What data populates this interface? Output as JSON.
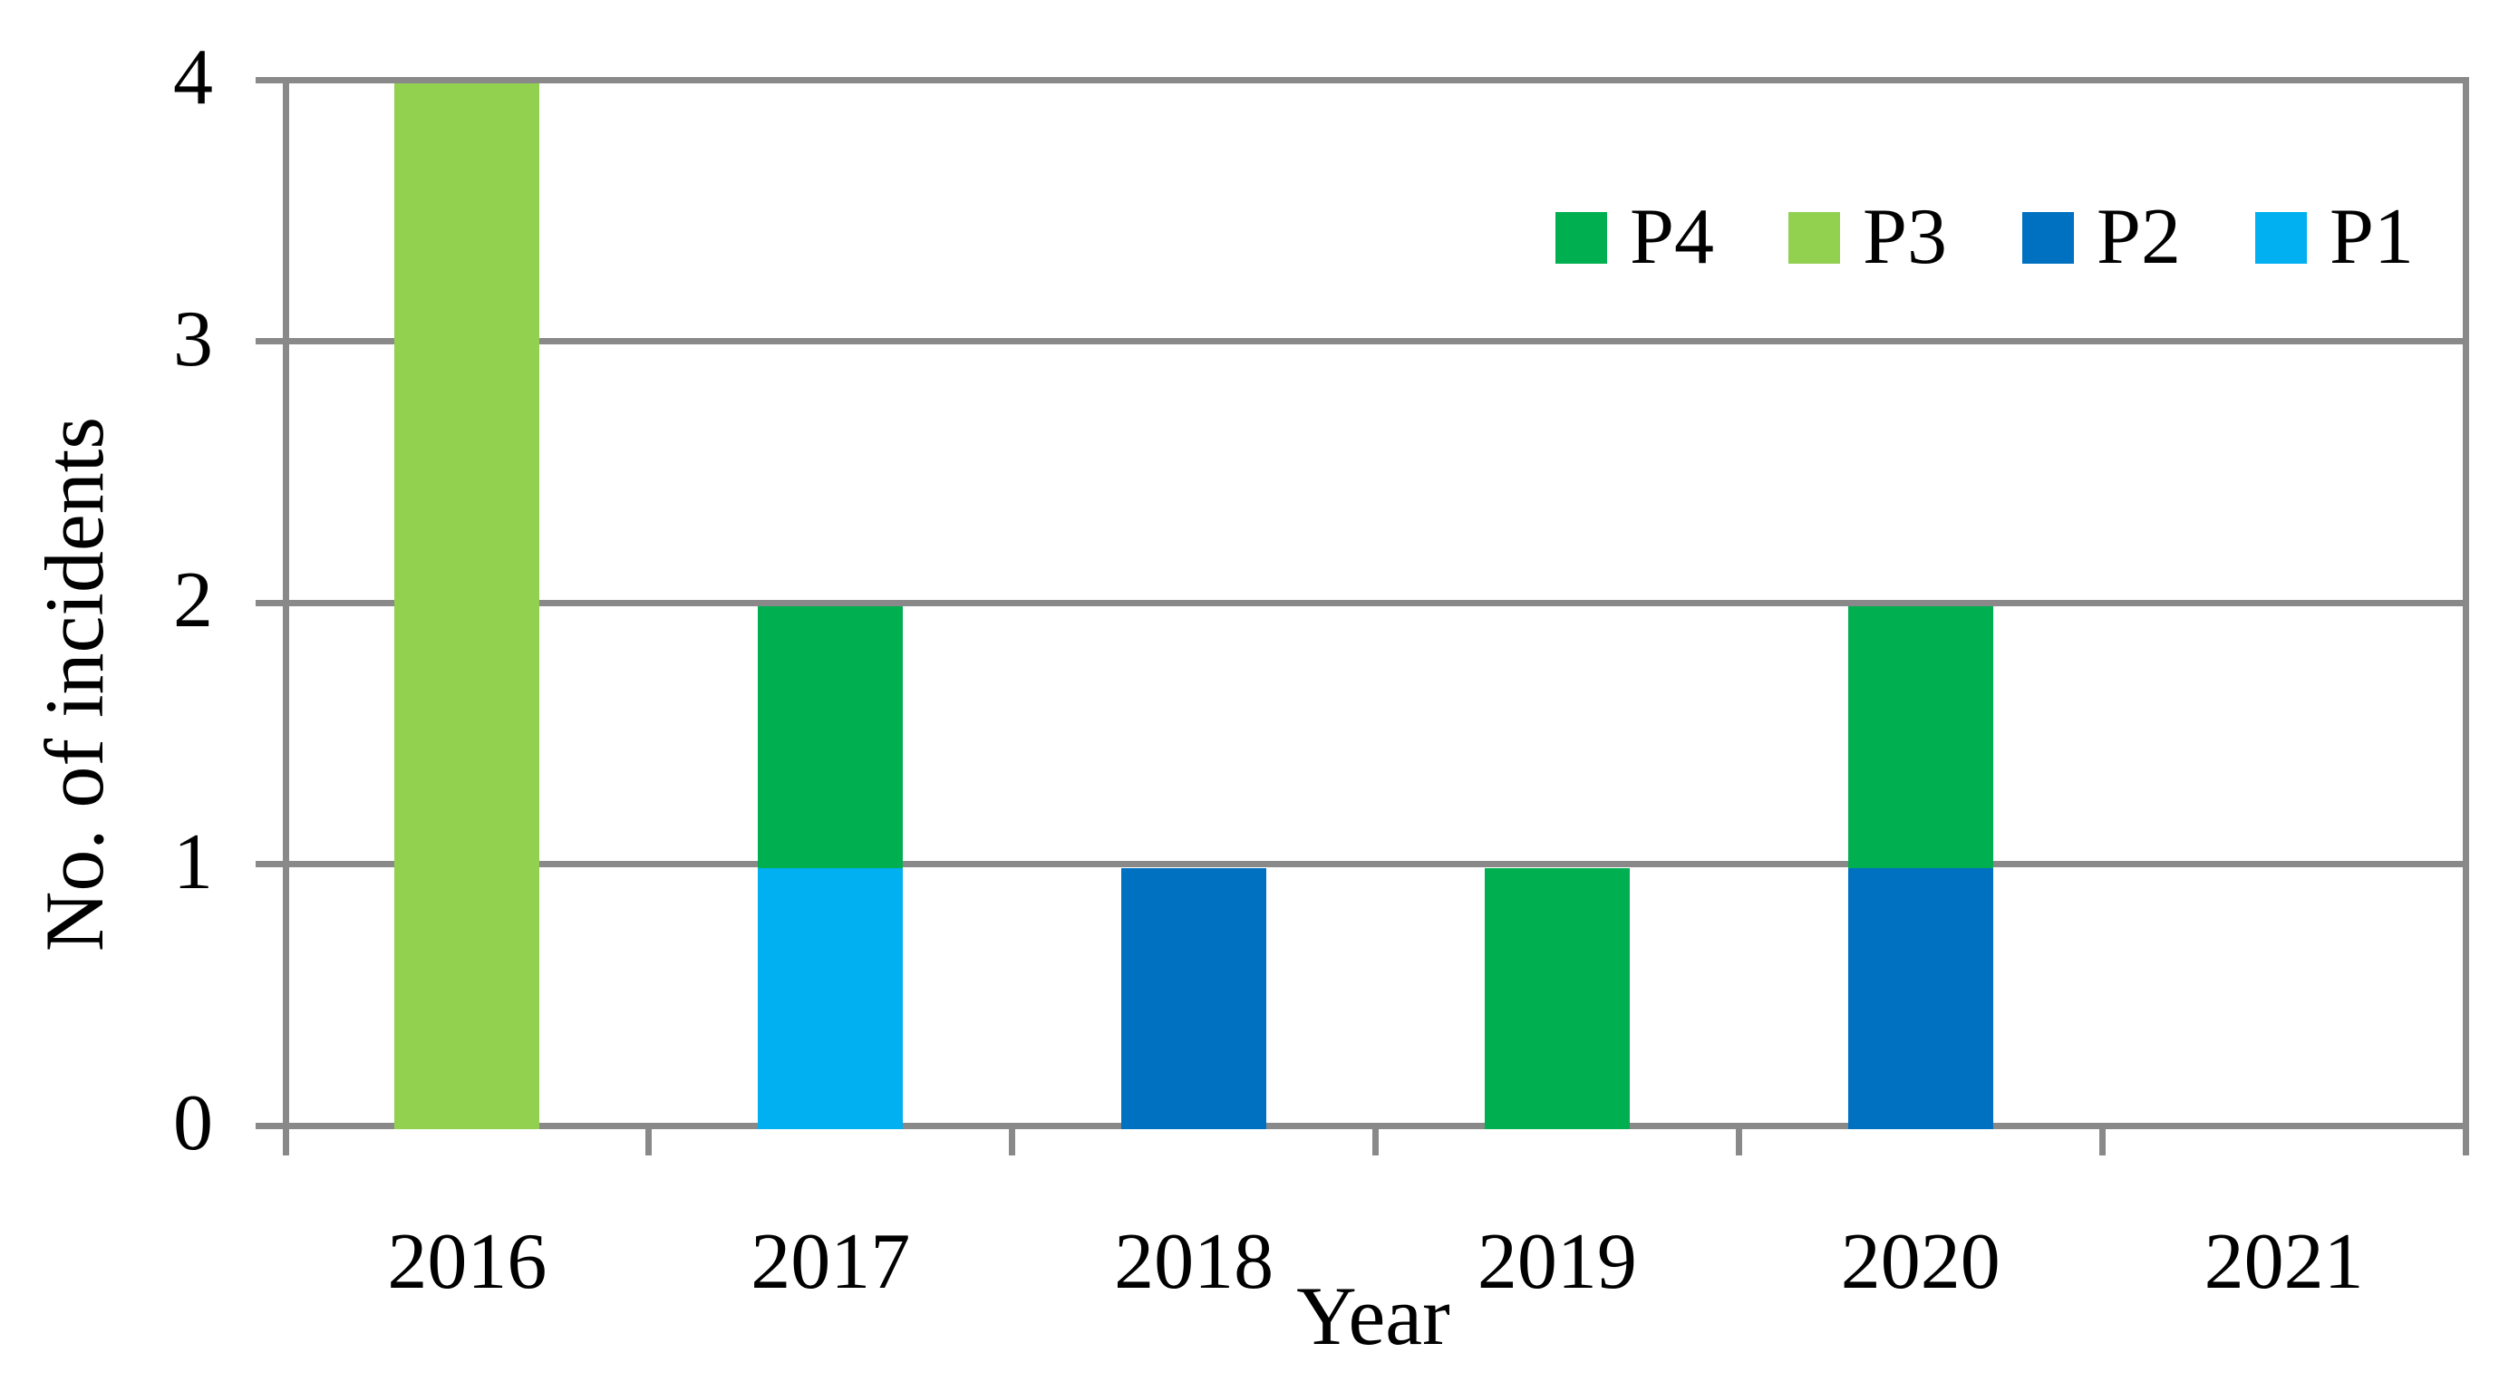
{
  "chart_data": {
    "type": "bar",
    "stacked": true,
    "title": "",
    "xlabel": "Year",
    "ylabel": "No. of incidents",
    "categories": [
      "2016",
      "2017",
      "2018",
      "2019",
      "2020",
      "2021"
    ],
    "series": [
      {
        "name": "P4",
        "color": "#00B050",
        "values": [
          0,
          1,
          0,
          1,
          1,
          0
        ]
      },
      {
        "name": "P3",
        "color": "#92D050",
        "values": [
          4,
          0,
          0,
          0,
          0,
          0
        ]
      },
      {
        "name": "P2",
        "color": "#0070C0",
        "values": [
          0,
          0,
          1,
          0,
          1,
          0
        ]
      },
      {
        "name": "P1",
        "color": "#00B0F0",
        "values": [
          0,
          1,
          0,
          0,
          0,
          0
        ]
      }
    ],
    "stack_order_bottom_to_top": [
      "P1",
      "P2",
      "P3",
      "P4"
    ],
    "legend_order": [
      "P4",
      "P3",
      "P2",
      "P1"
    ],
    "legend_position": "top-right",
    "ylim": [
      0,
      4
    ],
    "yticks": [
      0,
      1,
      2,
      3,
      4
    ],
    "ytick_labels": [
      "0",
      "1",
      "2",
      "3",
      "4"
    ],
    "grid": "horizontal",
    "gridline_color": "#898989",
    "axis_color": "#898989",
    "text_color": "#000000",
    "background_color": "#FFFFFF",
    "totals_by_category": {
      "2016": 4,
      "2017": 2,
      "2018": 1,
      "2019": 1,
      "2020": 2,
      "2021": 0
    }
  }
}
